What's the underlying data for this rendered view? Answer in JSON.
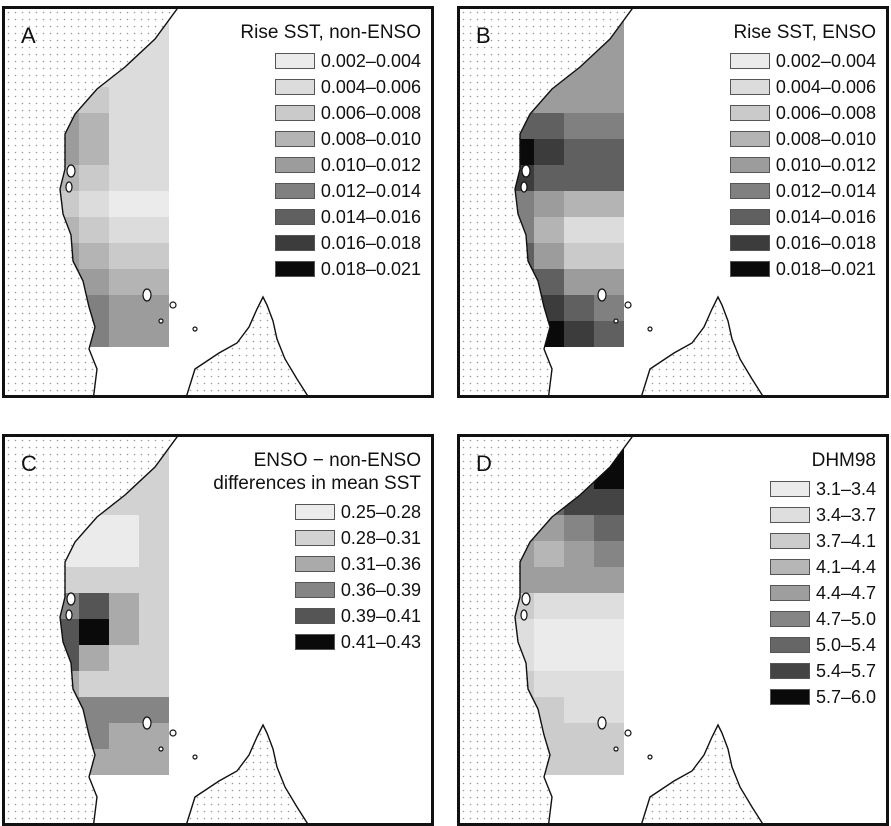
{
  "panels": [
    {
      "letter": "A",
      "title_lines": [
        "Rise SST, non-ENSO"
      ],
      "legend": [
        {
          "label": "0.002–0.004",
          "color": "#ebebeb"
        },
        {
          "label": "0.004–0.006",
          "color": "#dcdcdc"
        },
        {
          "label": "0.006–0.008",
          "color": "#cacaca"
        },
        {
          "label": "0.008–0.010",
          "color": "#b4b4b4"
        },
        {
          "label": "0.010–0.012",
          "color": "#9c9c9c"
        },
        {
          "label": "0.012–0.014",
          "color": "#808080"
        },
        {
          "label": "0.014–0.016",
          "color": "#606060"
        },
        {
          "label": "0.016–0.018",
          "color": "#3c3c3c"
        },
        {
          "label": "0.018–0.021",
          "color": "#0a0a0a"
        }
      ],
      "grid": [
        [
          0,
          0,
          1,
          1,
          1
        ],
        [
          0,
          0,
          1,
          1,
          1
        ],
        [
          2,
          2,
          1,
          1,
          1
        ],
        [
          3,
          3,
          2,
          1,
          1
        ],
        [
          4,
          4,
          3,
          1,
          1
        ],
        [
          4,
          4,
          3,
          1,
          1
        ],
        [
          4,
          3,
          2,
          1,
          1
        ],
        [
          3,
          2,
          1,
          0,
          0
        ],
        [
          4,
          3,
          2,
          1,
          1
        ],
        [
          5,
          4,
          3,
          2,
          2
        ],
        [
          6,
          5,
          4,
          3,
          3
        ],
        [
          6,
          6,
          5,
          4,
          4
        ],
        [
          6,
          6,
          5,
          4,
          4
        ]
      ]
    },
    {
      "letter": "B",
      "title_lines": [
        "Rise SST, ENSO"
      ],
      "legend": [
        {
          "label": "0.002–0.004",
          "color": "#ebebeb"
        },
        {
          "label": "0.004–0.006",
          "color": "#dcdcdc"
        },
        {
          "label": "0.006–0.008",
          "color": "#cacaca"
        },
        {
          "label": "0.008–0.010",
          "color": "#b4b4b4"
        },
        {
          "label": "0.010–0.012",
          "color": "#9c9c9c"
        },
        {
          "label": "0.012–0.014",
          "color": "#808080"
        },
        {
          "label": "0.014–0.016",
          "color": "#606060"
        },
        {
          "label": "0.016–0.018",
          "color": "#3c3c3c"
        },
        {
          "label": "0.018–0.021",
          "color": "#0a0a0a"
        }
      ],
      "grid": [
        [
          4,
          4,
          4,
          4,
          4
        ],
        [
          3,
          4,
          4,
          4,
          4
        ],
        [
          4,
          4,
          4,
          4,
          4
        ],
        [
          5,
          5,
          4,
          4,
          4
        ],
        [
          7,
          6,
          6,
          5,
          5
        ],
        [
          8,
          8,
          7,
          6,
          6
        ],
        [
          8,
          7,
          6,
          6,
          6
        ],
        [
          6,
          5,
          4,
          3,
          3
        ],
        [
          7,
          5,
          3,
          1,
          1
        ],
        [
          7,
          6,
          4,
          2,
          2
        ],
        [
          8,
          7,
          6,
          4,
          4
        ],
        [
          8,
          8,
          7,
          6,
          5
        ],
        [
          8,
          8,
          8,
          7,
          6
        ]
      ]
    },
    {
      "letter": "C",
      "title_lines": [
        "ENSO − non-ENSO",
        "differences in mean SST"
      ],
      "legend": [
        {
          "label": "0.25–0.28",
          "color": "#ebebeb"
        },
        {
          "label": "0.28–0.31",
          "color": "#d2d2d2"
        },
        {
          "label": "0.31–0.36",
          "color": "#aaaaaa"
        },
        {
          "label": "0.36–0.39",
          "color": "#858585"
        },
        {
          "label": "0.39–0.41",
          "color": "#555555"
        },
        {
          "label": "0.41–0.43",
          "color": "#0a0a0a"
        }
      ],
      "grid": [
        [
          1,
          1,
          1,
          1,
          1
        ],
        [
          1,
          1,
          1,
          1,
          1
        ],
        [
          1,
          1,
          1,
          1,
          1
        ],
        [
          0,
          0,
          0,
          0,
          1
        ],
        [
          0,
          0,
          0,
          0,
          1
        ],
        [
          1,
          1,
          1,
          1,
          1
        ],
        [
          2,
          3,
          4,
          2,
          1
        ],
        [
          3,
          4,
          5,
          2,
          1
        ],
        [
          3,
          4,
          2,
          1,
          1
        ],
        [
          2,
          2,
          1,
          1,
          1
        ],
        [
          3,
          3,
          3,
          3,
          3
        ],
        [
          3,
          3,
          3,
          2,
          2
        ],
        [
          3,
          3,
          2,
          2,
          2
        ]
      ]
    },
    {
      "letter": "D",
      "title_lines": [
        "DHM98"
      ],
      "legend": [
        {
          "label": "3.1–3.4",
          "color": "#ebebeb"
        },
        {
          "label": "3.4–3.7",
          "color": "#dedede"
        },
        {
          "label": "3.7–4.1",
          "color": "#cccccc"
        },
        {
          "label": "4.1–4.4",
          "color": "#b6b6b6"
        },
        {
          "label": "4.4–4.7",
          "color": "#9e9e9e"
        },
        {
          "label": "4.7–5.0",
          "color": "#858585"
        },
        {
          "label": "5.0–5.4",
          "color": "#666666"
        },
        {
          "label": "5.4–5.7",
          "color": "#444444"
        },
        {
          "label": "5.7–6.0",
          "color": "#0a0a0a"
        }
      ],
      "grid": [
        [
          6,
          6,
          7,
          7,
          8
        ],
        [
          6,
          6,
          7,
          7,
          8
        ],
        [
          6,
          6,
          6,
          7,
          7
        ],
        [
          5,
          5,
          4,
          5,
          6
        ],
        [
          4,
          4,
          3,
          4,
          5
        ],
        [
          4,
          4,
          4,
          4,
          4
        ],
        [
          2,
          2,
          1,
          1,
          1
        ],
        [
          2,
          1,
          0,
          0,
          0
        ],
        [
          2,
          1,
          0,
          0,
          0
        ],
        [
          2,
          2,
          1,
          1,
          1
        ],
        [
          2,
          2,
          2,
          1,
          1
        ],
        [
          2,
          2,
          2,
          2,
          2
        ],
        [
          2,
          2,
          2,
          2,
          2
        ]
      ]
    }
  ]
}
